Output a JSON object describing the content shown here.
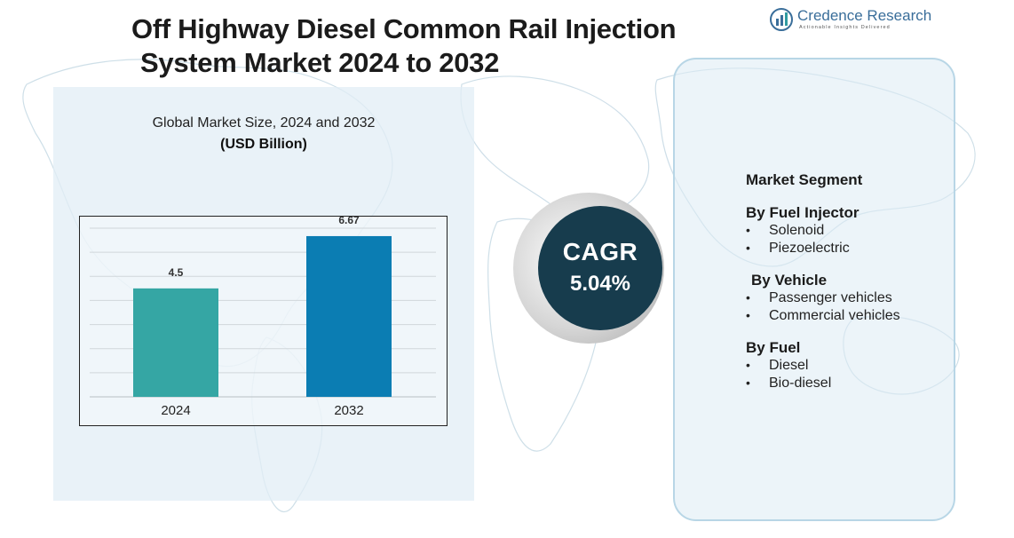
{
  "title": {
    "line1": "Off Highway Diesel Common Rail Injection",
    "line2": "System Market  2024  to 2032"
  },
  "logo": {
    "brand": "Credence Research",
    "tagline": "Actionable Insights Delivered",
    "icon": "bar-chart-globe-icon",
    "color": "#3a6e9a"
  },
  "chart_caption": {
    "subtitle": "Global Market Size, 2024 and 2032",
    "unit": "(USD Billion)"
  },
  "chart_data": {
    "type": "bar",
    "title": "Global Market Size, 2024 and 2032",
    "ylabel": "(USD Billion)",
    "categories": [
      "2024",
      "2032"
    ],
    "values": [
      4.5,
      6.67
    ],
    "value_labels": [
      "4.5",
      "6.67"
    ],
    "bar_colors": [
      "#35a6a4",
      "#0b7db3"
    ],
    "ylim": [
      0,
      7
    ],
    "grid": true
  },
  "cagr": {
    "label": "CAGR",
    "value": "5.04%",
    "color": "#173c4d"
  },
  "segments": {
    "heading": "Market Segment",
    "groups": [
      {
        "title": "By Fuel Injector",
        "items": [
          "Solenoid",
          "Piezoelectric"
        ]
      },
      {
        "title": "By Vehicle",
        "items": [
          "Passenger vehicles",
          "Commercial vehicles"
        ]
      },
      {
        "title": "By Fuel",
        "items": [
          "Diesel",
          "Bio-diesel"
        ]
      }
    ]
  }
}
